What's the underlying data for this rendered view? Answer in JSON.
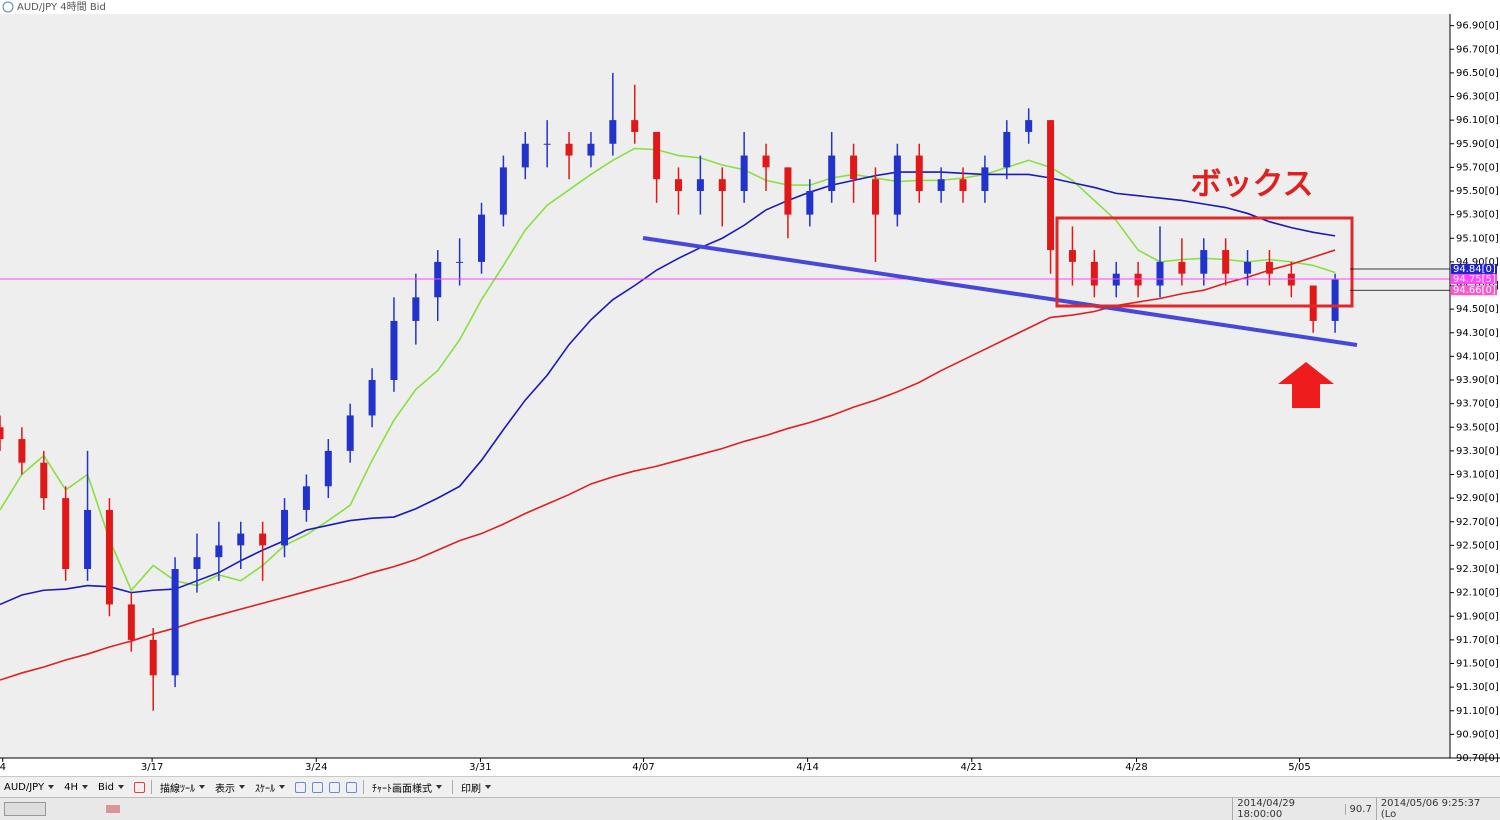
{
  "window": {
    "title": "AUD/JPY 4時間 Bid"
  },
  "chart_data": {
    "type": "candlestick",
    "x": [
      0,
      4,
      8,
      12,
      16,
      20,
      24,
      28,
      32,
      36,
      40,
      44,
      48,
      52,
      56,
      60,
      64,
      68,
      72,
      76,
      80,
      84,
      88,
      92,
      96,
      100,
      104,
      108,
      112,
      116,
      120,
      124,
      128,
      132,
      136,
      140,
      144,
      148,
      152,
      156,
      160,
      164,
      168,
      172,
      176,
      180,
      184,
      188,
      192,
      196,
      200,
      204,
      208,
      212,
      216,
      220,
      224,
      228,
      232,
      236,
      240,
      244
    ],
    "candles": {
      "open": [
        93.5,
        93.4,
        93.2,
        92.9,
        92.3,
        92.8,
        92.0,
        91.7,
        91.4,
        92.3,
        92.4,
        92.5,
        92.6,
        92.5,
        92.8,
        93.0,
        93.3,
        93.6,
        93.9,
        94.4,
        94.6,
        94.9,
        94.9,
        95.3,
        95.7,
        95.9,
        95.9,
        95.8,
        95.9,
        96.1,
        96.0,
        95.6,
        95.5,
        95.6,
        95.5,
        95.8,
        95.7,
        95.3,
        95.5,
        95.8,
        95.6,
        95.3,
        95.8,
        95.5,
        95.6,
        95.5,
        95.7,
        96.0,
        96.1,
        95.0,
        94.9,
        94.7,
        94.8,
        94.7,
        94.9,
        94.8,
        95.0,
        94.8,
        94.9,
        94.8,
        94.7,
        94.4
      ],
      "high": [
        93.6,
        93.5,
        93.3,
        93.0,
        93.3,
        92.9,
        92.1,
        91.8,
        92.4,
        92.6,
        92.7,
        92.7,
        92.7,
        92.9,
        93.1,
        93.4,
        93.7,
        94.0,
        94.6,
        94.8,
        95.0,
        95.1,
        95.4,
        95.8,
        96.0,
        96.1,
        96.0,
        96.0,
        96.5,
        96.4,
        96.0,
        95.7,
        95.8,
        95.7,
        96.0,
        95.9,
        95.7,
        95.6,
        96.0,
        95.9,
        95.7,
        95.9,
        95.9,
        95.7,
        95.7,
        95.8,
        96.1,
        96.2,
        96.1,
        95.2,
        95.0,
        94.9,
        94.9,
        95.2,
        95.1,
        95.1,
        95.1,
        95.0,
        95.0,
        94.9,
        94.7,
        94.8
      ],
      "low": [
        93.3,
        93.1,
        92.8,
        92.2,
        92.2,
        91.9,
        91.6,
        91.1,
        91.3,
        92.1,
        92.2,
        92.3,
        92.2,
        92.4,
        92.7,
        92.9,
        93.2,
        93.5,
        93.8,
        94.2,
        94.4,
        94.7,
        94.8,
        95.2,
        95.6,
        95.7,
        95.6,
        95.7,
        95.8,
        95.9,
        95.4,
        95.3,
        95.3,
        95.2,
        95.4,
        95.5,
        95.1,
        95.2,
        95.4,
        95.4,
        94.9,
        95.2,
        95.4,
        95.4,
        95.4,
        95.4,
        95.6,
        95.9,
        94.8,
        94.7,
        94.6,
        94.6,
        94.6,
        94.6,
        94.7,
        94.7,
        94.7,
        94.7,
        94.7,
        94.6,
        94.3,
        94.3
      ],
      "close": [
        93.4,
        93.2,
        92.9,
        92.3,
        92.8,
        92.0,
        91.7,
        91.4,
        92.3,
        92.4,
        92.5,
        92.6,
        92.5,
        92.8,
        93.0,
        93.3,
        93.6,
        93.9,
        94.4,
        94.6,
        94.9,
        94.9,
        95.3,
        95.7,
        95.9,
        95.9,
        95.8,
        95.9,
        96.1,
        96.0,
        95.6,
        95.5,
        95.6,
        95.5,
        95.8,
        95.7,
        95.3,
        95.5,
        95.8,
        95.6,
        95.3,
        95.8,
        95.5,
        95.6,
        95.5,
        95.7,
        96.0,
        96.1,
        95.0,
        94.9,
        94.7,
        94.8,
        94.7,
        94.9,
        94.8,
        95.0,
        94.8,
        94.9,
        94.8,
        94.7,
        94.4,
        94.75
      ]
    },
    "up_color": "#2233cc",
    "down_color": "#e01818",
    "lines": [
      {
        "color": "#88e040",
        "values": [
          92.8,
          93.1,
          93.26,
          92.97,
          93.1,
          92.55,
          92.12,
          92.33,
          92.2,
          92.16,
          92.25,
          92.2,
          92.33,
          92.5,
          92.59,
          92.71,
          92.84,
          93.22,
          93.56,
          93.82,
          93.98,
          94.24,
          94.58,
          94.87,
          95.17,
          95.38,
          95.51,
          95.64,
          95.76,
          95.86,
          95.85,
          95.8,
          95.78,
          95.72,
          95.68,
          95.59,
          95.55,
          95.55,
          95.61,
          95.64,
          95.61,
          95.58,
          95.59,
          95.59,
          95.61,
          95.64,
          95.7,
          95.76,
          95.7,
          95.59,
          95.42,
          95.25,
          95.0,
          94.9,
          94.92,
          94.93,
          94.92,
          94.9,
          94.92,
          94.9,
          94.87,
          94.81
        ]
      },
      {
        "color": "#1a1ab8",
        "values": [
          92.0,
          92.08,
          92.12,
          92.13,
          92.16,
          92.15,
          92.1,
          92.12,
          92.13,
          92.2,
          92.27,
          92.37,
          92.46,
          92.54,
          92.63,
          92.67,
          92.71,
          92.73,
          92.74,
          92.81,
          92.9,
          93.0,
          93.22,
          93.48,
          93.73,
          93.94,
          94.2,
          94.41,
          94.58,
          94.7,
          94.83,
          94.93,
          95.02,
          95.1,
          95.21,
          95.34,
          95.42,
          95.49,
          95.55,
          95.59,
          95.63,
          95.66,
          95.66,
          95.66,
          95.65,
          95.64,
          95.64,
          95.64,
          95.61,
          95.57,
          95.53,
          95.48,
          95.46,
          95.44,
          95.42,
          95.39,
          95.36,
          95.31,
          95.24,
          95.19,
          95.15,
          95.12
        ]
      },
      {
        "color": "#e02020",
        "values": [
          91.36,
          91.42,
          91.47,
          91.53,
          91.58,
          91.64,
          91.69,
          91.75,
          91.8,
          91.86,
          91.91,
          91.96,
          92.01,
          92.06,
          92.11,
          92.16,
          92.21,
          92.27,
          92.32,
          92.38,
          92.46,
          92.54,
          92.6,
          92.68,
          92.77,
          92.85,
          92.93,
          93.02,
          93.08,
          93.13,
          93.17,
          93.22,
          93.27,
          93.32,
          93.38,
          93.43,
          93.49,
          93.54,
          93.6,
          93.67,
          93.73,
          93.8,
          93.88,
          93.98,
          94.07,
          94.16,
          94.25,
          94.34,
          94.43,
          94.45,
          94.48,
          94.53,
          94.56,
          94.59,
          94.63,
          94.66,
          94.72,
          94.77,
          94.83,
          94.88,
          94.94,
          95.0
        ]
      }
    ],
    "xlim": [
      0,
      265
    ],
    "xticks": [
      {
        "value": 0.5,
        "label": "4"
      },
      {
        "value": 27.8,
        "label": "3/17"
      },
      {
        "value": 57.8,
        "label": "3/24"
      },
      {
        "value": 87.8,
        "label": "3/31"
      },
      {
        "value": 117.6,
        "label": "4/07"
      },
      {
        "value": 147.6,
        "label": "4/14"
      },
      {
        "value": 177.6,
        "label": "4/21"
      },
      {
        "value": 207.7,
        "label": "4/28"
      },
      {
        "value": 237.5,
        "label": "5/05"
      }
    ],
    "ylim": [
      90.7,
      97.1
    ],
    "yticks": [
      {
        "value": 90.7,
        "label": "90.70[0]"
      },
      {
        "value": 90.9,
        "label": "90.90[0]"
      },
      {
        "value": 91.1,
        "label": "91.10[0]"
      },
      {
        "value": 91.3,
        "label": "91.30[0]"
      },
      {
        "value": 91.5,
        "label": "91.50[0]"
      },
      {
        "value": 91.7,
        "label": "91.70[0]"
      },
      {
        "value": 91.9,
        "label": "91.90[0]"
      },
      {
        "value": 92.1,
        "label": "92.10[0]"
      },
      {
        "value": 92.3,
        "label": "92.30[0]"
      },
      {
        "value": 92.5,
        "label": "92.50[0]"
      },
      {
        "value": 92.7,
        "label": "92.70[0]"
      },
      {
        "value": 92.9,
        "label": "92.90[0]"
      },
      {
        "value": 93.1,
        "label": "93.10[0]"
      },
      {
        "value": 93.3,
        "label": "93.30[0]"
      },
      {
        "value": 93.5,
        "label": "93.50[0]"
      },
      {
        "value": 93.7,
        "label": "93.70[0]"
      },
      {
        "value": 93.9,
        "label": "93.90[0]"
      },
      {
        "value": 94.1,
        "label": "94.10[0]"
      },
      {
        "value": 94.3,
        "label": "94.30[0]"
      },
      {
        "value": 94.5,
        "label": "94.50[0]"
      },
      {
        "value": 94.7,
        "label": "94.70[0]"
      },
      {
        "value": 94.9,
        "label": "94.90[0]"
      },
      {
        "value": 95.1,
        "label": "95.10[0]"
      },
      {
        "value": 95.3,
        "label": "95.30[0]"
      },
      {
        "value": 95.5,
        "label": "95.50[0]"
      },
      {
        "value": 95.7,
        "label": "95.70[0]"
      },
      {
        "value": 95.9,
        "label": "95.90[0]"
      },
      {
        "value": 96.1,
        "label": "96.10[0]"
      },
      {
        "value": 96.3,
        "label": "96.30[0]"
      },
      {
        "value": 96.5,
        "label": "96.50[0]"
      },
      {
        "value": 96.7,
        "label": "96.70[0]"
      },
      {
        "value": 96.9,
        "label": "96.90[0]"
      }
    ],
    "price_markers": [
      {
        "value": 94.84,
        "label": "94.84[0]",
        "color": "#2222cc",
        "line": false
      },
      {
        "value": 94.755,
        "label": "94.75[5]",
        "color": "#ff44ff",
        "line": true
      },
      {
        "value": 94.66,
        "label": "94.66[0]",
        "color": "#ff55cc",
        "line": false
      }
    ],
    "annotation": "ボックス"
  },
  "toolbar": {
    "items": [
      "AUD/JPY",
      "4H",
      "Bid",
      "描線ﾂｰﾙ",
      "表示",
      "ｽｹｰﾙ",
      "ﾁｬｰﾄ画面様式",
      "印刷"
    ]
  },
  "status": {
    "items": [
      "2014/04/29 18:00:00",
      "90.7",
      "2014/05/06 9:25:37 (Lo"
    ]
  }
}
